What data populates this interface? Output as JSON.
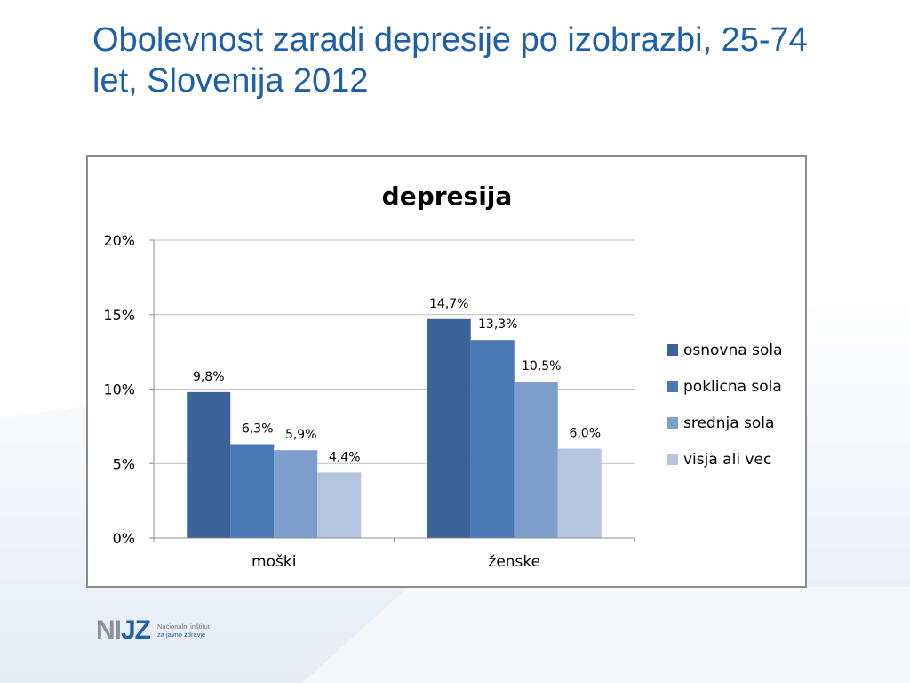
{
  "slide": {
    "title": "Obolevnost zaradi depresije po izobrazbi, 25-74 let, Slovenija 2012"
  },
  "logo": {
    "mark_left": "NI",
    "mark_right": "JZ",
    "line1": "Nacionalni inštitut",
    "line2": "za javno zdravje"
  },
  "chart_data": {
    "type": "bar",
    "title": "depresija",
    "categories": [
      "moški",
      "ženske"
    ],
    "series": [
      {
        "name": "osnovna sola",
        "values": [
          9.8,
          14.7
        ],
        "labels": [
          "9,8%",
          "14,7%"
        ],
        "color": "#3b6399"
      },
      {
        "name": "poklicna sola",
        "values": [
          6.3,
          13.3
        ],
        "labels": [
          "6,3%",
          "13,3%"
        ],
        "color": "#4a78b4"
      },
      {
        "name": "srednja sola",
        "values": [
          5.9,
          10.5
        ],
        "labels": [
          "5,9%",
          "10,5%"
        ],
        "color": "#7d9fcc"
      },
      {
        "name": "visja ali vec",
        "values": [
          4.4,
          6.0
        ],
        "labels": [
          "4,4%",
          "6,0%"
        ],
        "color": "#b5c5df"
      }
    ],
    "y_ticks": [
      0,
      5,
      10,
      15,
      20
    ],
    "y_tick_labels": [
      "0%",
      "5%",
      "10%",
      "15%",
      "20%"
    ],
    "ylim": [
      0,
      20
    ],
    "xlabel": "",
    "ylabel": "",
    "legend": "right",
    "grid": true
  },
  "colors": {
    "title": "#1f5fa6",
    "grid": "#bfbfbf",
    "axis": "#8c8c8c",
    "frame": "#8c8c8c"
  }
}
